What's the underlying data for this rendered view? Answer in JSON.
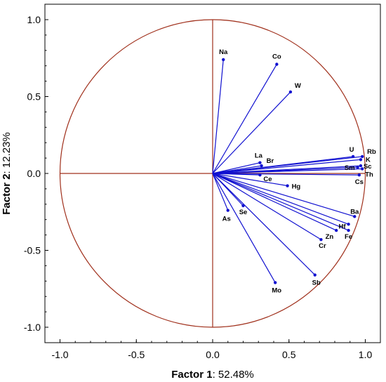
{
  "chart_data": {
    "type": "scatter",
    "subtype": "pca-correlation-circle",
    "title": "",
    "xlabel": {
      "name": "Factor 1",
      "value": ": 52.48%"
    },
    "ylabel": {
      "name": "Factor 2",
      "value": ": 12.23%"
    },
    "xlim": [
      -1.1,
      1.1
    ],
    "ylim": [
      -1.1,
      1.1
    ],
    "xticks": [
      "-1.0",
      "-0.5",
      "0.0",
      "0.5",
      "1.0"
    ],
    "yticks": [
      "-1.0",
      "-0.5",
      "0.0",
      "0.5",
      "1.0"
    ],
    "grid": false,
    "legend": "none",
    "colors": {
      "vectors": "#1010d0",
      "circle": "#a0301c",
      "axes": "#a0301c",
      "frame": "#000000"
    },
    "variables": [
      {
        "label": "Na",
        "x": 0.07,
        "y": 0.74
      },
      {
        "label": "Co",
        "x": 0.42,
        "y": 0.71
      },
      {
        "label": "W",
        "x": 0.51,
        "y": 0.53
      },
      {
        "label": "La",
        "x": 0.31,
        "y": 0.07
      },
      {
        "label": "Br",
        "x": 0.32,
        "y": 0.05
      },
      {
        "label": "Ce",
        "x": 0.31,
        "y": -0.01
      },
      {
        "label": "Hg",
        "x": 0.49,
        "y": -0.08
      },
      {
        "label": "U",
        "x": 0.92,
        "y": 0.11
      },
      {
        "label": "Rb",
        "x": 0.98,
        "y": 0.11
      },
      {
        "label": "K",
        "x": 0.97,
        "y": 0.09
      },
      {
        "label": "Sc",
        "x": 0.97,
        "y": 0.05
      },
      {
        "label": "Sm",
        "x": 0.95,
        "y": 0.04
      },
      {
        "label": "Th",
        "x": 0.98,
        "y": 0.03
      },
      {
        "label": "Cs",
        "x": 0.96,
        "y": -0.01
      },
      {
        "label": "Ba",
        "x": 0.93,
        "y": -0.28
      },
      {
        "label": "Hf",
        "x": 0.89,
        "y": -0.33
      },
      {
        "label": "Fe",
        "x": 0.89,
        "y": -0.37
      },
      {
        "label": "Zn",
        "x": 0.81,
        "y": -0.37
      },
      {
        "label": "Cr",
        "x": 0.71,
        "y": -0.43
      },
      {
        "label": "As",
        "x": 0.1,
        "y": -0.24
      },
      {
        "label": "Se",
        "x": 0.2,
        "y": -0.21
      },
      {
        "label": "Sb",
        "x": 0.67,
        "y": -0.66
      },
      {
        "label": "Mo",
        "x": 0.41,
        "y": -0.71
      }
    ]
  }
}
